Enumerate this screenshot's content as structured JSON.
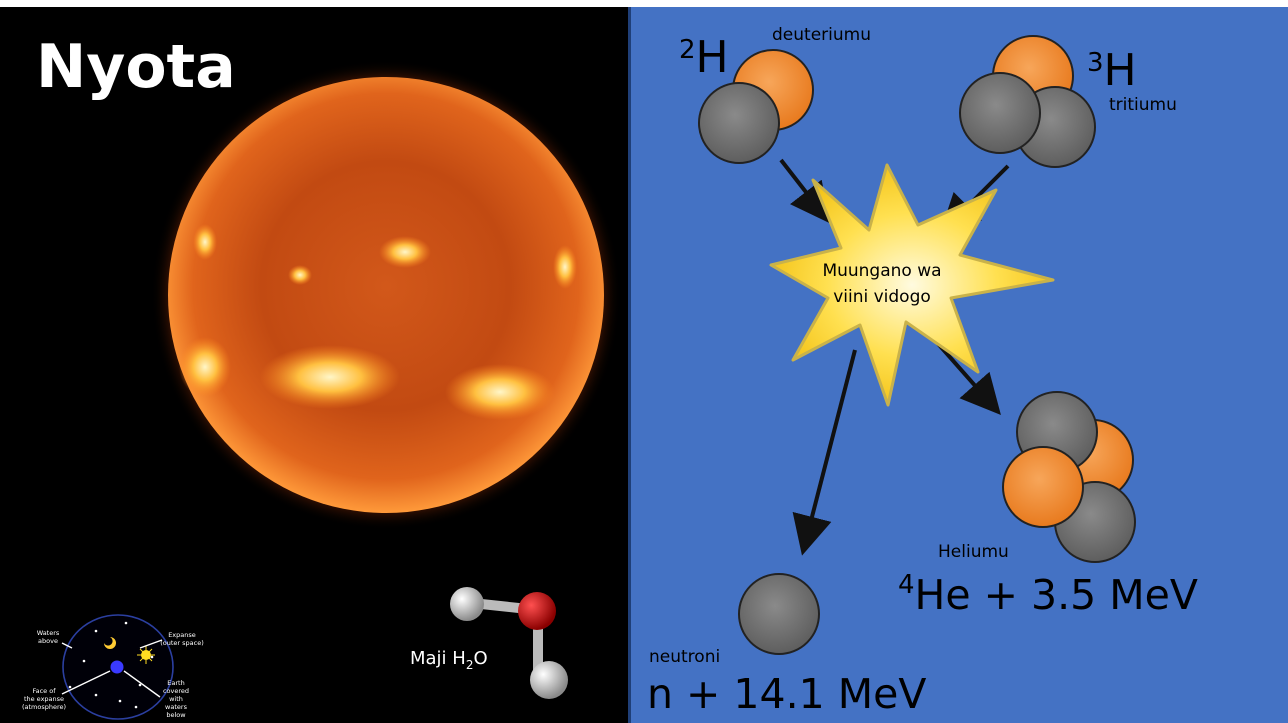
{
  "left_panel": {
    "title": "Nyota",
    "water_label": "Maji H",
    "water_sub": "2",
    "water_tail": "O",
    "cosmos": {
      "waters_above_1": "Waters",
      "waters_above_2": "above",
      "expanse_1": "Expanse",
      "expanse_2": "(outer space)",
      "face_1": "Face of",
      "face_2": "the expanse",
      "face_3": "(atmosphere)",
      "earth_1": "Earth",
      "earth_2": "covered",
      "earth_3": "with",
      "earth_4": "waters",
      "earth_5": "below"
    }
  },
  "right_panel": {
    "deuterium_sup": "2",
    "deuterium_sym": "H",
    "deuterium_name": "deuteriumu",
    "tritium_sup": "3",
    "tritium_sym": "H",
    "tritium_name": "tritiumu",
    "fusion_line1": "Muungano wa",
    "fusion_line2": "viini vidogo",
    "helium_name": "Heliumu",
    "helium_sup": "4",
    "helium_eq": "He + 3.5 MeV",
    "neutron_name": "neutroni",
    "neutron_eq": "n + 14.1 MeV"
  },
  "colors": {
    "proton": "#f08a2a",
    "neutron": "#707070",
    "panel_blue": "#4472c4",
    "star": "#ffd21f"
  }
}
